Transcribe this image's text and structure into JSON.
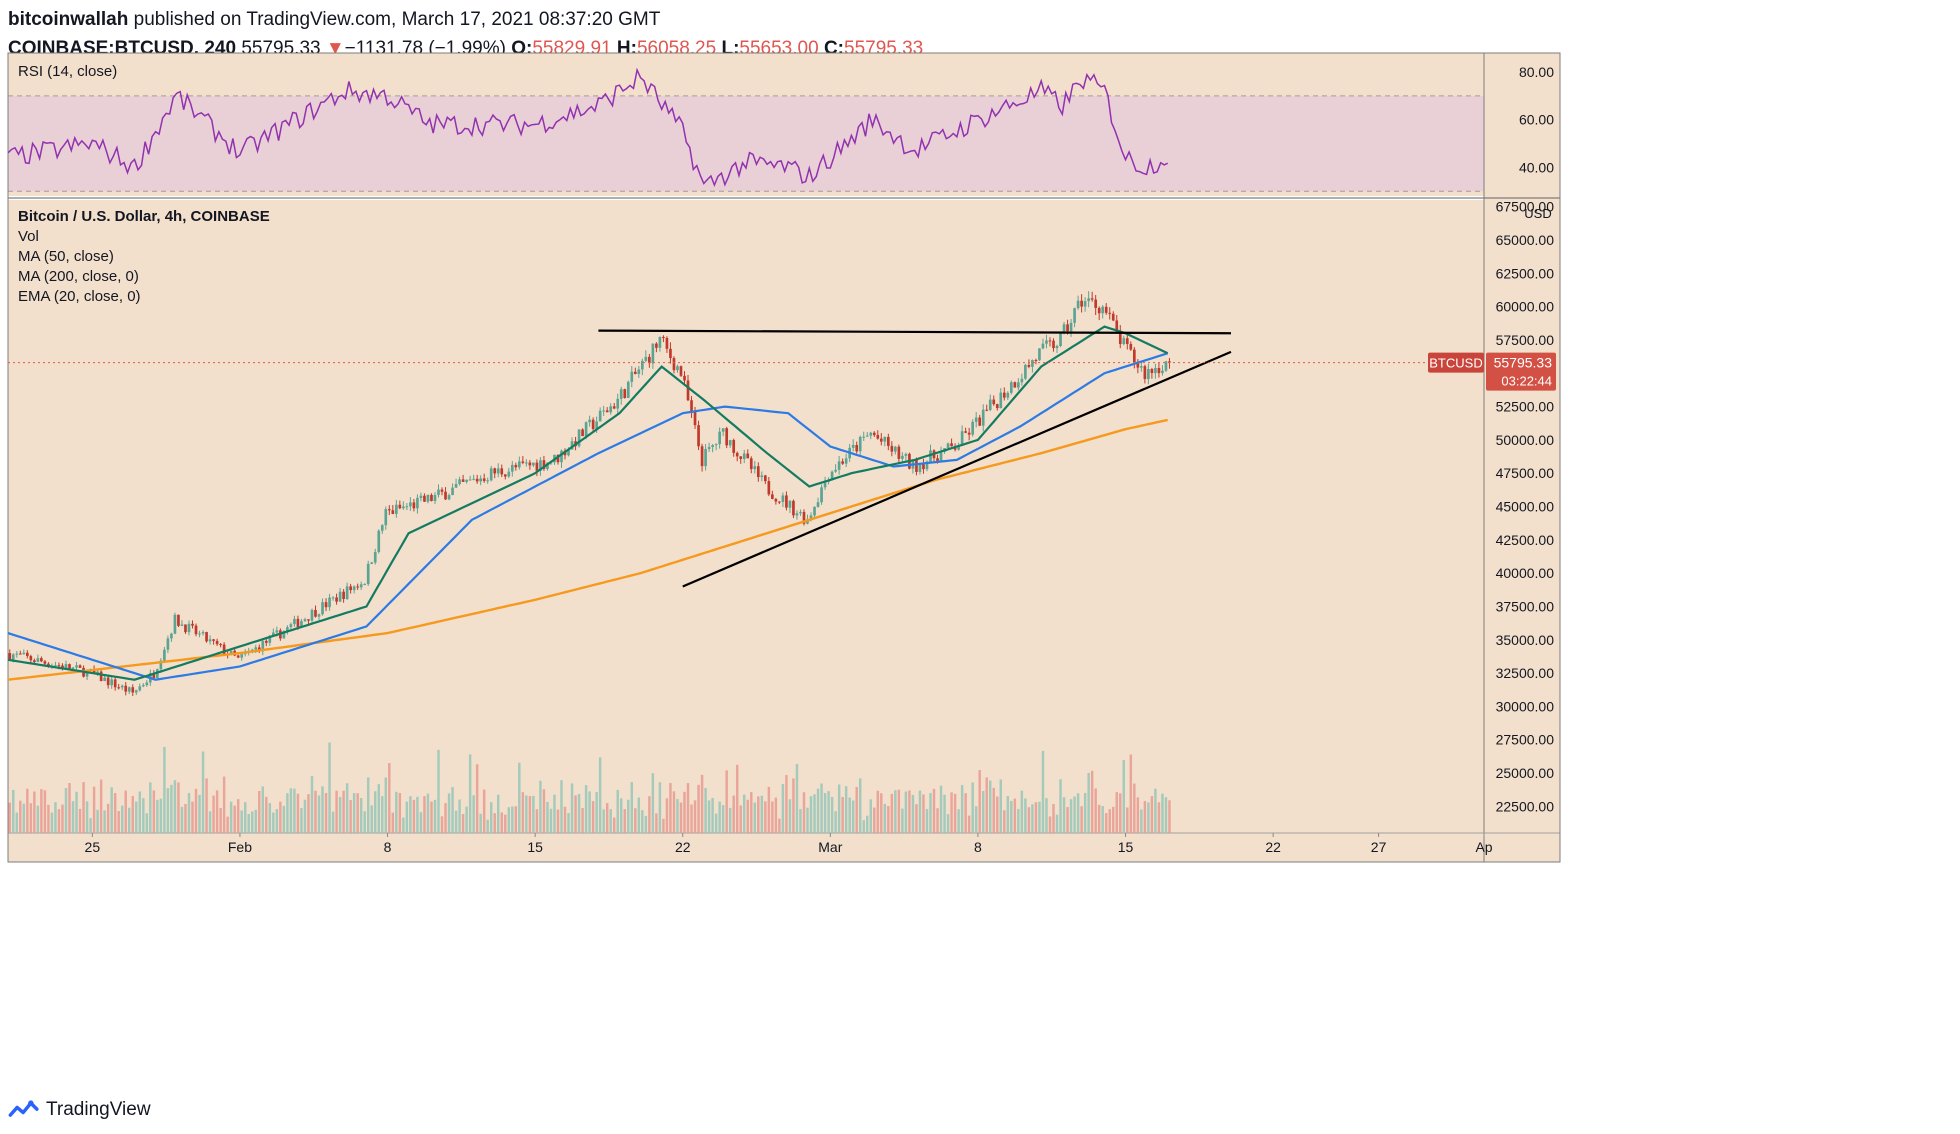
{
  "header": {
    "author": "bitcoinwallah",
    "published_text": "published on TradingView.com, March 17, 2021 08:37:20 GMT",
    "symbol": "COINBASE:BTCUSD, 240",
    "last": "55795.33",
    "change_arrow": "▼",
    "change": "−1131.78 (−1.99%)",
    "o_label": "O:",
    "o": "55829.91",
    "h_label": "H:",
    "h": "56058.25",
    "l_label": "L:",
    "l": "55653.00",
    "c_label": "C:",
    "c": "55795.33"
  },
  "rsi_pane": {
    "label": "RSI (14, close)",
    "ticks": [
      "80.00",
      "60.00",
      "40.00"
    ]
  },
  "price_pane": {
    "legend": [
      "Bitcoin / U.S. Dollar, 4h, COINBASE",
      "Vol",
      "MA (50, close)",
      "MA (200, close, 0)",
      "EMA (20, close, 0)"
    ],
    "currency": "USD",
    "symbol_tag": "BTCUSD",
    "price_tag": "55795.33",
    "countdown": "03:22:44",
    "ticks": [
      "67500.00",
      "65000.00",
      "62500.00",
      "60000.00",
      "57500.00",
      "55000.00",
      "52500.00",
      "50000.00",
      "47500.00",
      "45000.00",
      "42500.00",
      "40000.00",
      "37500.00",
      "35000.00",
      "32500.00",
      "30000.00",
      "27500.00",
      "25000.00",
      "22500.00"
    ]
  },
  "x_ticks": [
    "25",
    "Feb",
    "8",
    "15",
    "22",
    "Mar",
    "8",
    "15",
    "22",
    "27",
    "Ap"
  ],
  "footer": {
    "brand": "TradingView"
  },
  "colors": {
    "background": "#f3e0cc",
    "rsi_band": "#e9cfd6",
    "rsi_line": "#9232b0",
    "up": "#5ba493",
    "down": "#c0392b",
    "ma50": "#2c7be5",
    "ma200": "#f59a1f",
    "ema20": "#137b62",
    "price_line": "#e05c4a"
  },
  "chart_data": {
    "type": "candlestick",
    "interval": "4h",
    "x_range": [
      "2021-01-21",
      "2021-04-01"
    ],
    "ylim": [
      20500,
      68000
    ],
    "rsi_ylim": [
      28,
      88
    ],
    "rsi_bands": [
      30,
      70
    ],
    "last_price": 55795.33,
    "price_anchors": [
      [
        "2021-01-21",
        34000
      ],
      [
        "2021-01-25",
        32500
      ],
      [
        "2021-01-27",
        31000
      ],
      [
        "2021-01-28",
        32500
      ],
      [
        "2021-01-29",
        36500
      ],
      [
        "2021-02-01",
        33500
      ],
      [
        "2021-02-04",
        36500
      ],
      [
        "2021-02-07",
        39500
      ],
      [
        "2021-02-08",
        44500
      ],
      [
        "2021-02-10",
        45500
      ],
      [
        "2021-02-13",
        47500
      ],
      [
        "2021-02-16",
        48500
      ],
      [
        "2021-02-19",
        53000
      ],
      [
        "2021-02-21",
        57500
      ],
      [
        "2021-02-22",
        55000
      ],
      [
        "2021-02-23",
        48500
      ],
      [
        "2021-02-24",
        50500
      ],
      [
        "2021-02-26",
        46500
      ],
      [
        "2021-02-28",
        44000
      ],
      [
        "2021-03-01",
        47500
      ],
      [
        "2021-03-03",
        50500
      ],
      [
        "2021-03-05",
        48000
      ],
      [
        "2021-03-07",
        49500
      ],
      [
        "2021-03-09",
        53000
      ],
      [
        "2021-03-11",
        56500
      ],
      [
        "2021-03-12",
        57500
      ],
      [
        "2021-03-13",
        60500
      ],
      [
        "2021-03-14",
        60000
      ],
      [
        "2021-03-15",
        57000
      ],
      [
        "2021-03-16",
        55000
      ],
      [
        "2021-03-17",
        55795
      ]
    ],
    "rsi_anchors": [
      [
        "2021-01-21",
        44
      ],
      [
        "2021-01-25",
        50
      ],
      [
        "2021-01-27",
        40
      ],
      [
        "2021-01-29",
        70
      ],
      [
        "2021-02-01",
        46
      ],
      [
        "2021-02-06",
        72
      ],
      [
        "2021-02-08",
        70
      ],
      [
        "2021-02-10",
        58
      ],
      [
        "2021-02-15",
        58
      ],
      [
        "2021-02-18",
        66
      ],
      [
        "2021-02-20",
        78
      ],
      [
        "2021-02-22",
        55
      ],
      [
        "2021-02-23",
        32
      ],
      [
        "2021-02-25",
        42
      ],
      [
        "2021-02-27",
        40
      ],
      [
        "2021-02-28",
        36
      ],
      [
        "2021-03-03",
        60
      ],
      [
        "2021-03-05",
        47
      ],
      [
        "2021-03-09",
        64
      ],
      [
        "2021-03-11",
        72
      ],
      [
        "2021-03-12",
        66
      ],
      [
        "2021-03-13",
        77
      ],
      [
        "2021-03-14",
        72
      ],
      [
        "2021-03-15",
        44
      ],
      [
        "2021-03-16",
        40
      ],
      [
        "2021-03-17",
        45
      ]
    ],
    "ma50": [
      [
        "2021-01-21",
        35500
      ],
      [
        "2021-01-28",
        32000
      ],
      [
        "2021-02-01",
        33000
      ],
      [
        "2021-02-07",
        36000
      ],
      [
        "2021-02-12",
        44000
      ],
      [
        "2021-02-18",
        49000
      ],
      [
        "2021-02-22",
        52000
      ],
      [
        "2021-02-24",
        52500
      ],
      [
        "2021-02-27",
        52000
      ],
      [
        "2021-03-01",
        49500
      ],
      [
        "2021-03-04",
        48000
      ],
      [
        "2021-03-07",
        48500
      ],
      [
        "2021-03-10",
        51000
      ],
      [
        "2021-03-14",
        55000
      ],
      [
        "2021-03-17",
        56500
      ]
    ],
    "ma200": [
      [
        "2021-01-21",
        32000
      ],
      [
        "2021-02-01",
        34000
      ],
      [
        "2021-02-08",
        35500
      ],
      [
        "2021-02-15",
        38000
      ],
      [
        "2021-02-20",
        40000
      ],
      [
        "2021-02-25",
        42500
      ],
      [
        "2021-03-01",
        44500
      ],
      [
        "2021-03-06",
        47000
      ],
      [
        "2021-03-11",
        49000
      ],
      [
        "2021-03-15",
        50800
      ],
      [
        "2021-03-17",
        51500
      ]
    ],
    "ema20": [
      [
        "2021-01-21",
        33500
      ],
      [
        "2021-01-27",
        32000
      ],
      [
        "2021-01-30",
        33500
      ],
      [
        "2021-02-07",
        37500
      ],
      [
        "2021-02-09",
        43000
      ],
      [
        "2021-02-15",
        47500
      ],
      [
        "2021-02-19",
        52000
      ],
      [
        "2021-02-21",
        55500
      ],
      [
        "2021-02-23",
        53000
      ],
      [
        "2021-02-26",
        49000
      ],
      [
        "2021-02-28",
        46500
      ],
      [
        "2021-03-02",
        47500
      ],
      [
        "2021-03-05",
        48500
      ],
      [
        "2021-03-08",
        50000
      ],
      [
        "2021-03-11",
        55500
      ],
      [
        "2021-03-14",
        58500
      ],
      [
        "2021-03-15",
        58000
      ],
      [
        "2021-03-17",
        56500
      ]
    ],
    "trendlines": [
      {
        "name": "resistance",
        "from": [
          "2021-02-18",
          58200
        ],
        "to": [
          "2021-03-20",
          58000
        ]
      },
      {
        "name": "support",
        "from": [
          "2021-02-22",
          39000
        ],
        "to": [
          "2021-03-20",
          56600
        ]
      }
    ]
  }
}
